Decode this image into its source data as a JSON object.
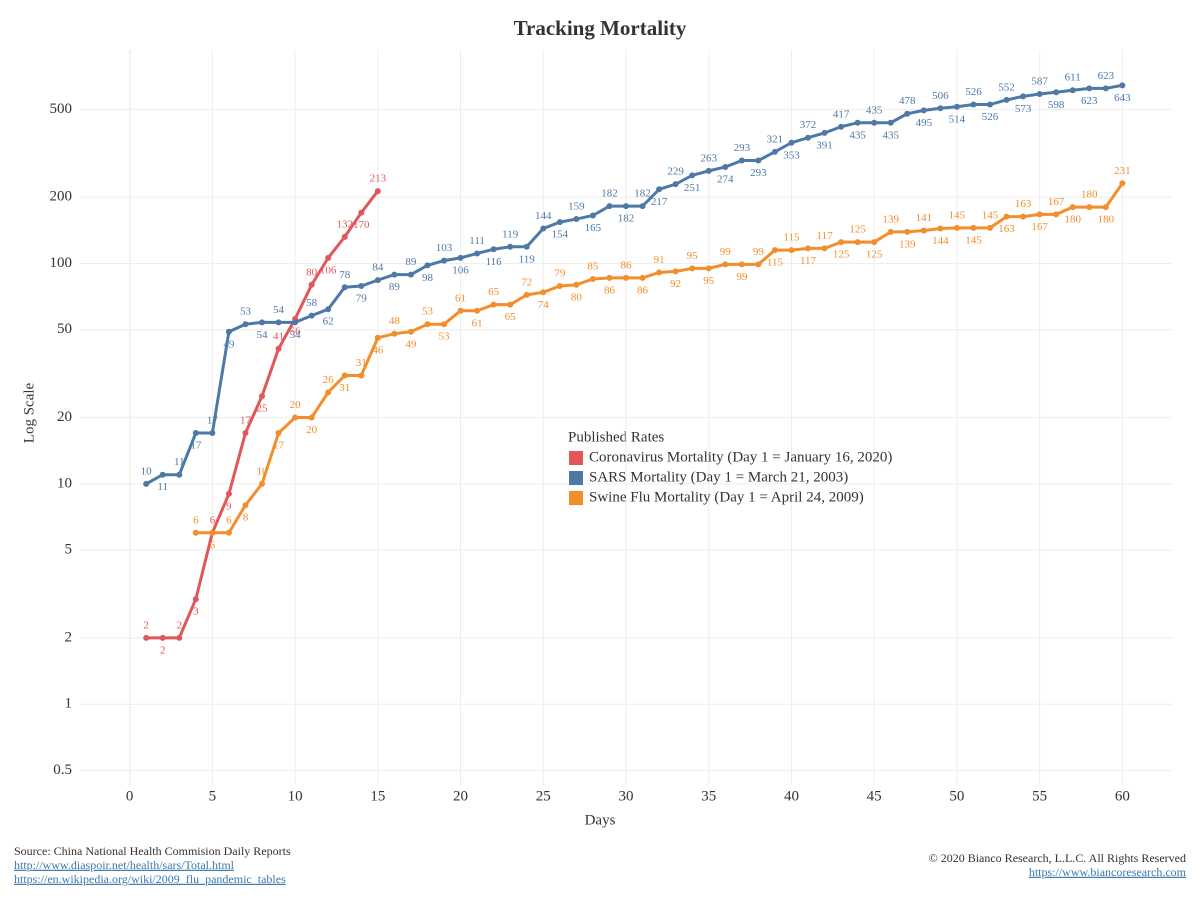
{
  "chart_data": {
    "type": "line",
    "title": "Tracking Mortality",
    "xlabel": "Days",
    "ylabel": "Log Scale",
    "log_y": true,
    "grid": true,
    "x": [
      1,
      2,
      3,
      4,
      5,
      6,
      7,
      8,
      9,
      10,
      11,
      12,
      13,
      14,
      15,
      16,
      17,
      18,
      19,
      20,
      21,
      22,
      23,
      24,
      25,
      26,
      27,
      28,
      29,
      30,
      31,
      32,
      33,
      34,
      35,
      36,
      37,
      38,
      39,
      40,
      41,
      42,
      43,
      44,
      45,
      46,
      47,
      48,
      49,
      50,
      51,
      52,
      53,
      54,
      55,
      56,
      57,
      58,
      59,
      60
    ],
    "xlim": [
      -3,
      63
    ],
    "xticks": [
      0,
      5,
      10,
      15,
      20,
      25,
      30,
      35,
      40,
      45,
      50,
      55,
      60
    ],
    "ylim": [
      0.43,
      930
    ],
    "yticks": [
      0.5,
      1,
      2,
      5,
      10,
      20,
      50,
      100,
      200,
      500
    ],
    "legend_title": "Published Rates",
    "series": [
      {
        "name": "Coronavirus Mortality (Day 1 = January 16, 2020)",
        "color": "#e15759",
        "values": [
          2,
          2,
          2,
          3,
          6,
          9,
          17,
          25,
          41,
          56,
          80,
          106,
          132,
          170,
          213,
          null,
          null,
          null,
          null,
          null,
          null,
          null,
          null,
          null,
          null,
          null,
          null,
          null,
          null,
          null,
          null,
          null,
          null,
          null,
          null,
          null,
          null,
          null,
          null,
          null,
          null,
          null,
          null,
          null,
          null,
          null,
          null,
          null,
          null,
          null,
          null,
          null,
          null,
          null,
          null,
          null,
          null,
          null,
          null,
          null
        ]
      },
      {
        "name": "SARS Mortality  (Day 1 = March 21, 2003)",
        "color": "#4e79a7",
        "values": [
          10,
          11,
          11,
          17,
          17,
          49,
          53,
          54,
          54,
          54,
          58,
          62,
          78,
          79,
          84,
          89,
          89,
          98,
          103,
          106,
          111,
          116,
          119,
          119,
          144,
          154,
          159,
          165,
          182,
          182,
          182,
          217,
          229,
          251,
          263,
          274,
          293,
          293,
          321,
          353,
          372,
          391,
          417,
          435,
          435,
          435,
          478,
          495,
          506,
          514,
          526,
          526,
          552,
          573,
          587,
          598,
          611,
          623,
          623,
          643
        ]
      },
      {
        "name": "Swine Flu Mortality  (Day 1 = April 24, 2009)",
        "color": "#f28e2b",
        "values": [
          null,
          null,
          null,
          6,
          6,
          6,
          8,
          10,
          17,
          20,
          20,
          26,
          31,
          31,
          46,
          48,
          49,
          53,
          53,
          61,
          61,
          65,
          65,
          72,
          74,
          79,
          80,
          85,
          86,
          86,
          86,
          91,
          92,
          95,
          95,
          99,
          99,
          99,
          115,
          115,
          117,
          117,
          125,
          125,
          125,
          139,
          139,
          141,
          144,
          145,
          145,
          145,
          163,
          163,
          167,
          167,
          180,
          180,
          180,
          231
        ]
      }
    ],
    "source": "Source: China National Health Commision Daily Reports",
    "links": [
      "http://www.diaspoir.net/health/sars/Total.html",
      "https://en.wikipedia.org/wiki/2009_flu_pandemic_tables"
    ],
    "copyright": "© 2020 Bianco Research, L.L.C. All Rights Reserved",
    "website": "https://www.biancoresearch.com"
  }
}
